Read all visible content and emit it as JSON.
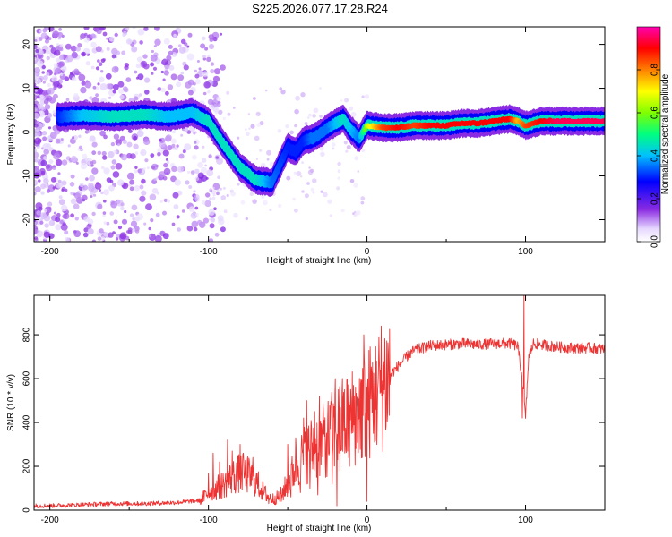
{
  "title": "S225.2026.077.17.28.R24",
  "chart_data": [
    {
      "type": "heatmap",
      "xlabel": "Height of straight line (km)",
      "ylabel": "Frequency (Hz)",
      "xlim": [
        -210,
        150
      ],
      "ylim": [
        -25,
        24
      ],
      "xticks": [
        -200,
        -100,
        0,
        100
      ],
      "yticks": [
        -20,
        -10,
        0,
        10,
        20
      ],
      "colorbar": {
        "label": "Normalized spectral amplitude",
        "range": [
          0,
          1
        ],
        "ticks": [
          0,
          0.2,
          0.4,
          0.6,
          0.8
        ],
        "colors": [
          "#ffffff",
          "#dcc8ff",
          "#8a2be2",
          "#0000ff",
          "#00c0ff",
          "#00ff80",
          "#80ff00",
          "#ffff00",
          "#ff8000",
          "#ff0000",
          "#ff00b0"
        ]
      },
      "ridge": {
        "x": [
          -195,
          -180,
          -160,
          -140,
          -125,
          -110,
          -100,
          -90,
          -80,
          -70,
          -60,
          -50,
          -45,
          -40,
          -35,
          -30,
          -25,
          -20,
          -15,
          -10,
          -5,
          0,
          10,
          20,
          30,
          40,
          50,
          60,
          70,
          80,
          90,
          95,
          100,
          110,
          120,
          130,
          140,
          150
        ],
        "freq": [
          3.5,
          3.8,
          3.5,
          4.0,
          3.5,
          4.5,
          2.5,
          -3.0,
          -8.0,
          -11.0,
          -11.5,
          -3.5,
          -4.5,
          -2.0,
          -1.5,
          -0.5,
          1.0,
          2.0,
          3.0,
          0.5,
          -1.5,
          1.5,
          1.0,
          1.0,
          1.5,
          1.5,
          1.5,
          2.0,
          2.0,
          2.5,
          3.0,
          2.5,
          1.5,
          2.5,
          2.5,
          2.5,
          2.5,
          2.5
        ],
        "amplitude": [
          0.3,
          0.4,
          0.45,
          0.45,
          0.4,
          0.4,
          0.45,
          0.45,
          0.45,
          0.45,
          0.35,
          0.3,
          0.3,
          0.3,
          0.35,
          0.35,
          0.35,
          0.4,
          0.45,
          0.4,
          0.35,
          0.65,
          0.85,
          0.9,
          0.85,
          0.9,
          0.9,
          0.9,
          0.9,
          0.9,
          0.9,
          0.75,
          0.85,
          0.9,
          0.95,
          0.95,
          0.95,
          0.95
        ]
      }
    },
    {
      "type": "line",
      "xlabel": "Height of straight line (km)",
      "ylabel": "SNR (10 * v/v)",
      "xlim": [
        -210,
        150
      ],
      "ylim": [
        0,
        980
      ],
      "xticks": [
        -200,
        -100,
        0,
        100
      ],
      "yticks": [
        0,
        200,
        400,
        600,
        800
      ],
      "color": "#ee3333",
      "x": [
        -210,
        -200,
        -180,
        -160,
        -140,
        -120,
        -105,
        -100,
        -95,
        -90,
        -85,
        -80,
        -75,
        -70,
        -65,
        -60,
        -55,
        -50,
        -45,
        -40,
        -35,
        -30,
        -25,
        -20,
        -15,
        -10,
        -5,
        0,
        5,
        10,
        15,
        20,
        25,
        30,
        40,
        50,
        60,
        70,
        80,
        90,
        95,
        98,
        100,
        102,
        105,
        110,
        120,
        130,
        140,
        150
      ],
      "y": [
        20,
        20,
        25,
        30,
        30,
        35,
        45,
        80,
        100,
        120,
        150,
        170,
        160,
        130,
        80,
        50,
        60,
        120,
        200,
        250,
        280,
        300,
        330,
        370,
        400,
        420,
        450,
        480,
        520,
        580,
        620,
        660,
        700,
        730,
        750,
        755,
        760,
        755,
        760,
        760,
        750,
        600,
        420,
        700,
        760,
        755,
        745,
        740,
        740,
        735
      ],
      "spikes": [
        {
          "x": -100,
          "y": 170
        },
        {
          "x": -97,
          "y": 260
        },
        {
          "x": -93,
          "y": 220
        },
        {
          "x": -88,
          "y": 320
        },
        {
          "x": -85,
          "y": 270
        },
        {
          "x": -80,
          "y": 300
        },
        {
          "x": -78,
          "y": 260
        },
        {
          "x": -72,
          "y": 240
        },
        {
          "x": -50,
          "y": 300
        },
        {
          "x": -45,
          "y": 330
        },
        {
          "x": -40,
          "y": 420
        },
        {
          "x": -38,
          "y": 500
        },
        {
          "x": -33,
          "y": 450
        },
        {
          "x": -30,
          "y": 520
        },
        {
          "x": -27,
          "y": 410
        },
        {
          "x": -23,
          "y": 460
        },
        {
          "x": -20,
          "y": 600
        },
        {
          "x": -18,
          "y": 550
        },
        {
          "x": -15,
          "y": 490
        },
        {
          "x": -12,
          "y": 430
        },
        {
          "x": -8,
          "y": 520
        },
        {
          "x": -4,
          "y": 580
        },
        {
          "x": -2,
          "y": 800
        },
        {
          "x": 3,
          "y": 620
        },
        {
          "x": 6,
          "y": 680
        },
        {
          "x": 8,
          "y": 650
        },
        {
          "x": 99,
          "y": 980
        }
      ],
      "dips": [
        {
          "x": -62,
          "y": 30
        },
        {
          "x": -54,
          "y": 40
        },
        {
          "x": -48,
          "y": 60
        },
        {
          "x": -42,
          "y": 80
        },
        {
          "x": -36,
          "y": 100
        },
        {
          "x": -31,
          "y": 70
        },
        {
          "x": -26,
          "y": 150
        },
        {
          "x": -22,
          "y": 120
        },
        {
          "x": -19,
          "y": 20
        },
        {
          "x": -17,
          "y": 180
        },
        {
          "x": -14,
          "y": 260
        },
        {
          "x": -11,
          "y": 200
        },
        {
          "x": -7,
          "y": 280
        },
        {
          "x": -3,
          "y": 240
        },
        {
          "x": 0,
          "y": 40
        },
        {
          "x": 4,
          "y": 350
        },
        {
          "x": 98,
          "y": 420
        }
      ]
    }
  ]
}
